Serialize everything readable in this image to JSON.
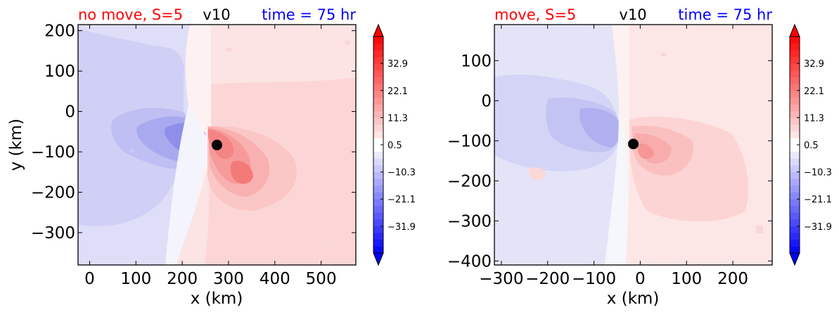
{
  "chart_data": [
    {
      "type": "heatmap",
      "title_left": "no move, S=5",
      "title_center": "v10",
      "title_right": "time = 75 hr",
      "title_left_color": "#ff0000",
      "title_right_color": "#0000ff",
      "xlabel": "x (km)",
      "ylabel": "y (km)",
      "xlim": [
        -25,
        575
      ],
      "ylim": [
        -380,
        215
      ],
      "xticks": [
        0,
        100,
        200,
        300,
        400,
        500
      ],
      "xtick_labels": [
        "0",
        "100",
        "200",
        "300",
        "400",
        "500"
      ],
      "yticks": [
        200,
        100,
        0,
        -100,
        -200,
        -300
      ],
      "ytick_labels": [
        "200",
        "100",
        "0",
        "−100",
        "−200",
        "−300"
      ],
      "center_marker": [
        275,
        -83
      ],
      "colorbar": {
        "range": [
          -42.6,
          43.6
        ],
        "ticks": [
          32.9,
          22.1,
          11.3,
          0.5,
          -10.3,
          -21.1,
          -31.9
        ],
        "tick_labels": [
          "32.9",
          "22.1",
          "11.3",
          "0.5",
          "−10.3",
          "−21.1",
          "−31.9"
        ]
      }
    },
    {
      "type": "heatmap",
      "title_left": "move, S=5",
      "title_center": "v10",
      "title_right": "time = 75 hr",
      "title_left_color": "#ff0000",
      "title_right_color": "#0000ff",
      "xlabel": "x (km)",
      "ylabel": "",
      "xlim": [
        -315,
        285
      ],
      "ylim": [
        -410,
        190
      ],
      "xticks": [
        -300,
        -200,
        -100,
        0,
        100,
        200
      ],
      "xtick_labels": [
        "−300",
        "−200",
        "−100",
        "0",
        "100",
        "200"
      ],
      "yticks": [
        100,
        0,
        -100,
        -200,
        -300,
        -400
      ],
      "ytick_labels": [
        "100",
        "0",
        "−100",
        "−200",
        "−300",
        "−400"
      ],
      "center_marker": [
        -15,
        -108
      ],
      "colorbar": {
        "range": [
          -42.6,
          43.6
        ],
        "ticks": [
          32.9,
          22.1,
          11.3,
          0.5,
          -10.3,
          -21.1,
          -31.9
        ],
        "tick_labels": [
          "32.9",
          "22.1",
          "11.3",
          "0.5",
          "−10.3",
          "−21.1",
          "−31.9"
        ]
      }
    }
  ]
}
